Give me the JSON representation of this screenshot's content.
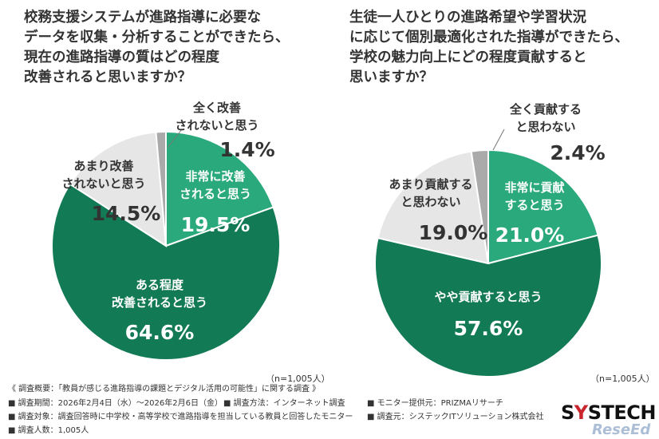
{
  "colors": {
    "very": "#29a97c",
    "somewhat": "#137a56",
    "not_much": "#e6e6e6",
    "not_at_all": "#aaaaaa"
  },
  "chart_data": [
    {
      "type": "pie",
      "title": "校務支援システムが進路指導に必要な\nデータを収集・分析することができたら、\n現在の進路指導の質はどの程度\n改善されると思いますか？",
      "sample_size": "（n=1,005人）",
      "slices": [
        {
          "name": "非常に改善\nされると思う",
          "value": 19.5,
          "value_label": "19.5%",
          "color": "#29a97c"
        },
        {
          "name": "ある程度\n改善されると思う",
          "value": 64.6,
          "value_label": "64.6%",
          "color": "#137a56"
        },
        {
          "name": "あまり改善\nされないと思う",
          "value": 14.5,
          "value_label": "14.5%",
          "color": "#e6e6e6"
        },
        {
          "name": "全く改善\nされないと思う",
          "value": 1.4,
          "value_label": "1.4%",
          "color": "#aaaaaa"
        }
      ]
    },
    {
      "type": "pie",
      "title": "生徒一人ひとりの進路希望や学習状況\nに応じて個別最適化された指導ができたら、\n学校の魅力向上にどの程度貢献すると\n思いますか？",
      "sample_size": "（n=1,005人）",
      "slices": [
        {
          "name": "非常に貢献\nすると思う",
          "value": 21.0,
          "value_label": "21.0%",
          "color": "#29a97c"
        },
        {
          "name": "やや貢献すると思う",
          "value": 57.6,
          "value_label": "57.6%",
          "color": "#137a56"
        },
        {
          "name": "あまり貢献する\nと思わない",
          "value": 19.0,
          "value_label": "19.0%",
          "color": "#e6e6e6"
        },
        {
          "name": "全く貢献する\nと思わない",
          "value": 2.4,
          "value_label": "2.4%",
          "color": "#aaaaaa"
        }
      ]
    }
  ],
  "footer": {
    "overview": "《 調査概要：「教員が感じる進路指導の課題とデジタル活用の可能性」に関する調査 》",
    "period": "■ 調査期間：2026年2月4日（水）～2026年2月6日（金）",
    "method": "■ 調査方法：インターネット調査",
    "provider": "■ モニター提供元：PRIZMAリサーチ",
    "target": "■ 調査対象：調査回答時に中学校・高等学校で進路指導を担当している教員と回答したモニター",
    "organizer": "■ 調査元：システックITソリューション株式会社",
    "count": "■ 調査人数：1,005人"
  },
  "logo": {
    "text_a": "S",
    "text_accent": "Y",
    "text_b": "STECH"
  },
  "watermark": "ReseEd"
}
